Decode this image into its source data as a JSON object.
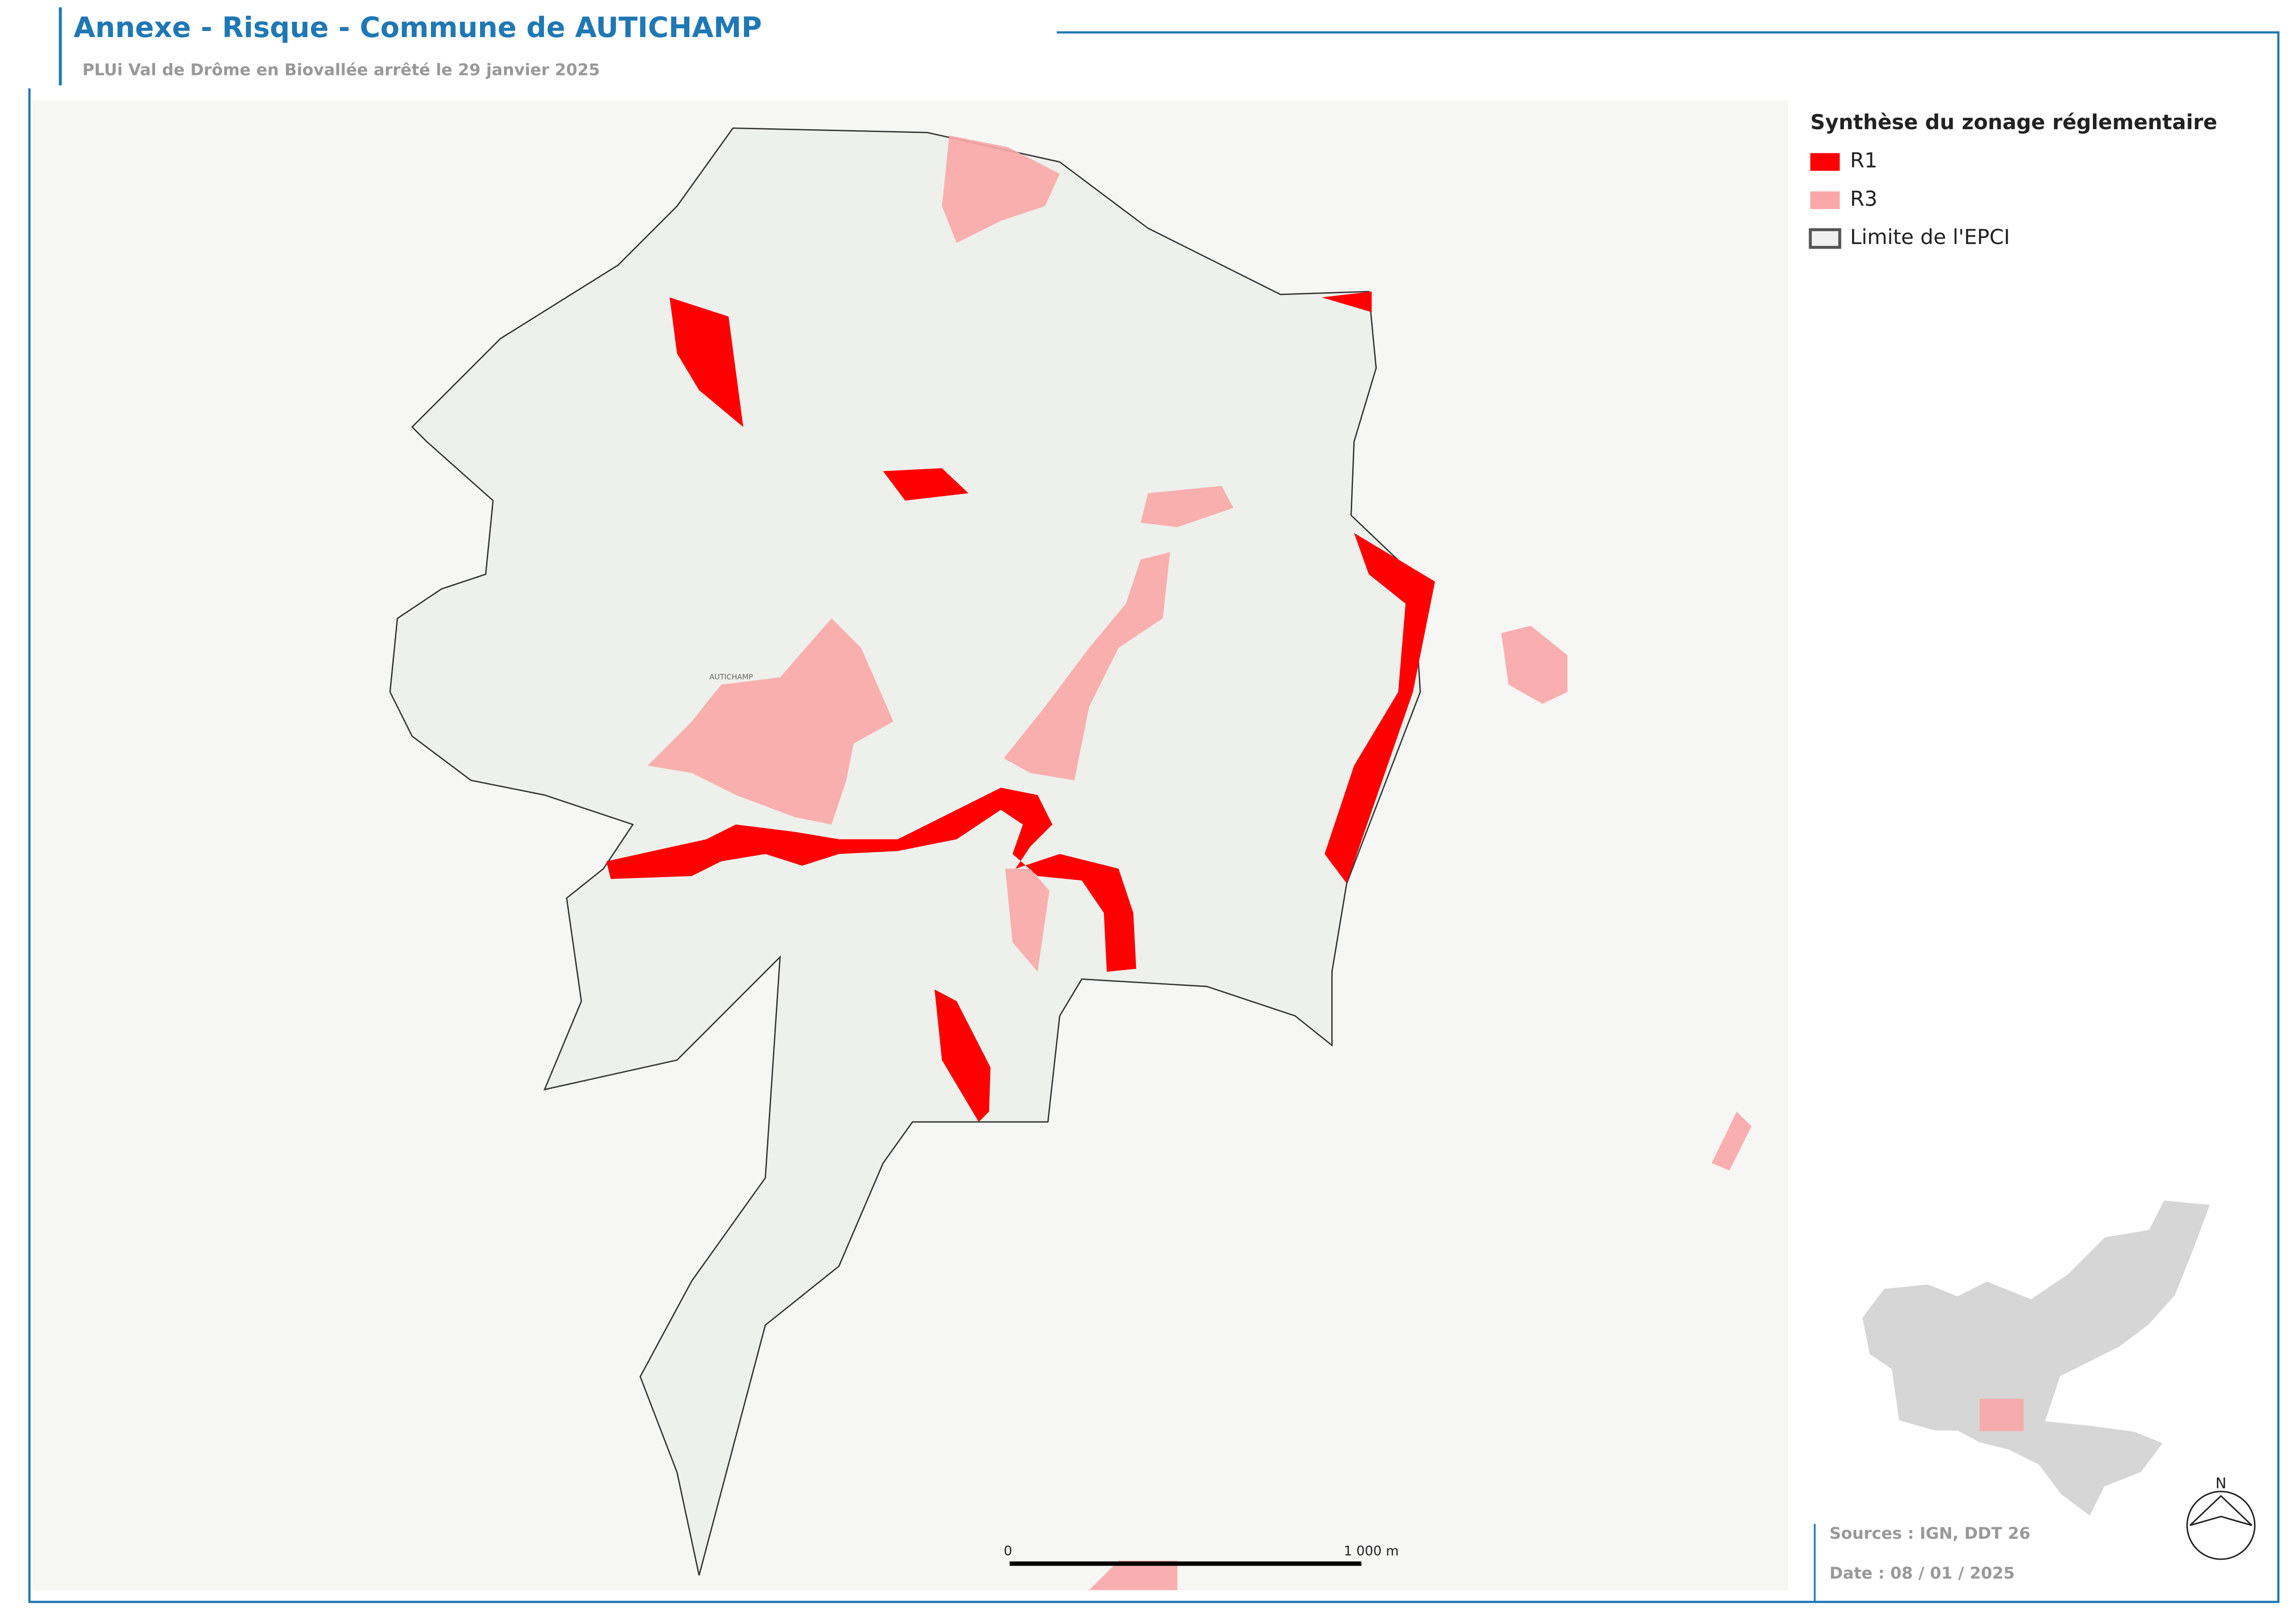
{
  "header": {
    "title": "Annexe - Risque - Commune de AUTICHAMP",
    "subtitle": "PLUi Val de Drôme en Biovallée arrêté le 29 janvier 2025"
  },
  "map": {
    "place_label": "AUTICHAMP"
  },
  "legend": {
    "title": "Synthèse du zonage réglementaire",
    "items": [
      {
        "label": "R1",
        "color": "#ff0000"
      },
      {
        "label": "R3",
        "color": "#f9a7a7"
      },
      {
        "label": "Limite de l'EPCI",
        "color": "#555555"
      }
    ]
  },
  "scale": {
    "start": "0",
    "end": "1 000 m"
  },
  "north": "N",
  "footer": {
    "sources": "Sources : IGN, DDT 26",
    "date": "Date : 08 / 01 / 2025"
  }
}
